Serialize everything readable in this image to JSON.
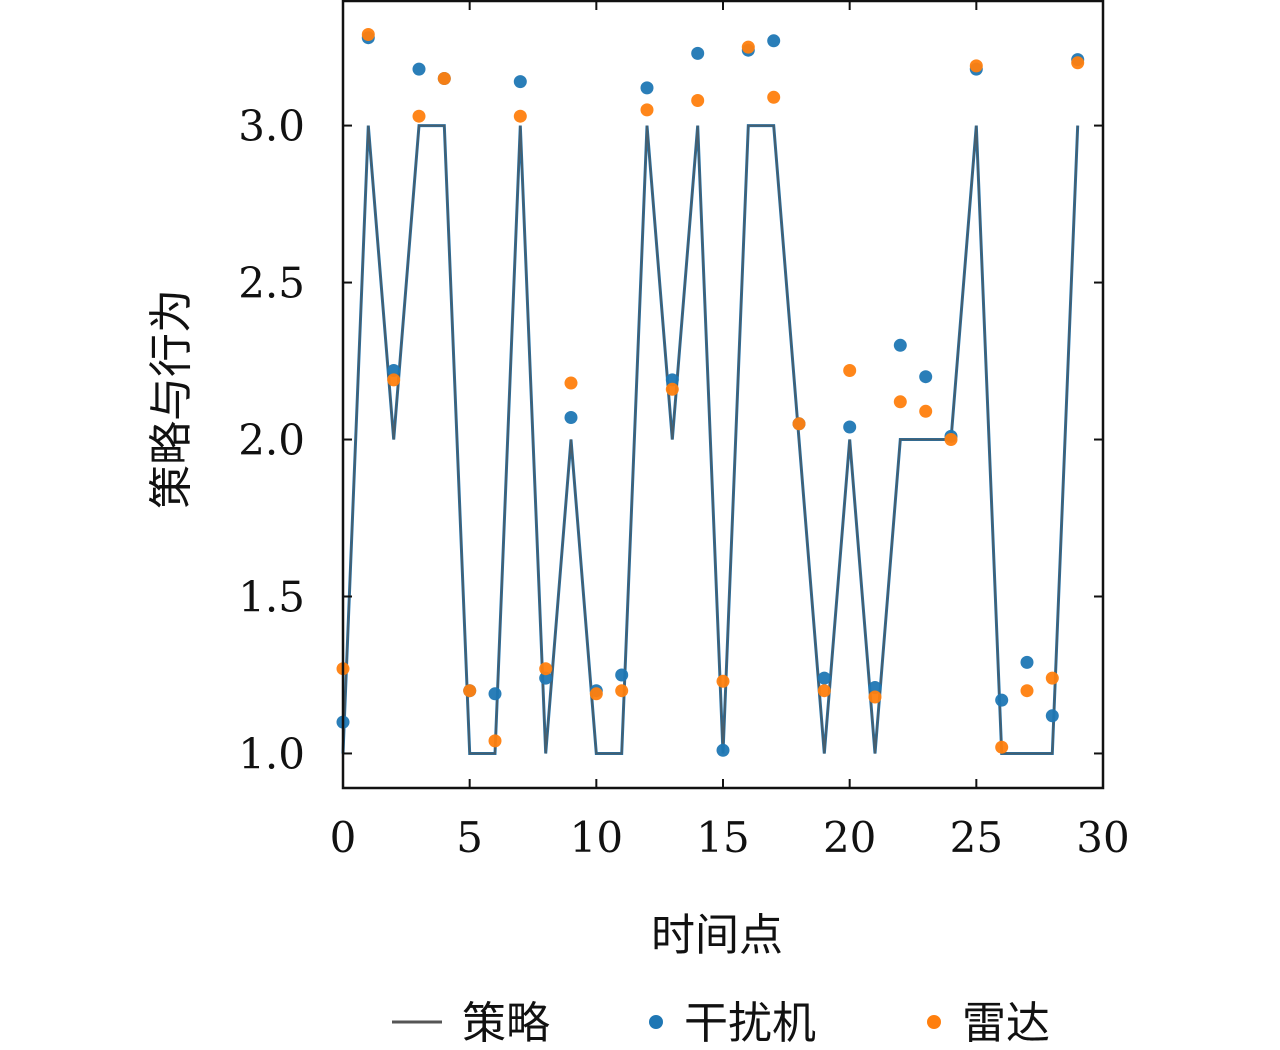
{
  "chart_data": {
    "type": "line",
    "title": "",
    "xlabel": "时间点",
    "ylabel": "策略与行为",
    "xlim": [
      0,
      30
    ],
    "ylim": [
      0.89,
      3.4
    ],
    "xticks": [
      0,
      5,
      10,
      15,
      20,
      25,
      30
    ],
    "xtick_labels": [
      "0",
      "5",
      "10",
      "15",
      "20",
      "25",
      "30"
    ],
    "yticks": [
      1.0,
      1.5,
      2.0,
      2.5,
      3.0
    ],
    "ytick_labels": [
      "1.0",
      "1.5",
      "2.0",
      "2.5",
      "3.0"
    ],
    "grid": false,
    "legend_position": "bottom",
    "x": [
      0,
      1,
      2,
      3,
      4,
      5,
      6,
      7,
      8,
      9,
      10,
      11,
      12,
      13,
      14,
      15,
      16,
      17,
      18,
      19,
      20,
      21,
      22,
      23,
      24,
      25,
      26,
      27,
      28,
      29
    ],
    "series": [
      {
        "name": "策略",
        "kind": "line",
        "color": "#1f77b4",
        "overlay_color": "#555555",
        "values": [
          1.0,
          3.0,
          2.0,
          3.0,
          3.0,
          1.0,
          1.0,
          3.0,
          1.0,
          2.0,
          1.0,
          1.0,
          3.0,
          2.0,
          3.0,
          1.0,
          3.0,
          3.0,
          2.0,
          1.0,
          2.0,
          1.0,
          2.0,
          2.0,
          2.0,
          3.0,
          1.0,
          1.0,
          1.0,
          3.0
        ]
      },
      {
        "name": "干扰机",
        "kind": "scatter",
        "color": "#1f77b4",
        "values": [
          1.1,
          3.28,
          2.22,
          3.18,
          3.15,
          1.2,
          1.19,
          3.14,
          1.24,
          2.07,
          1.2,
          1.25,
          3.12,
          2.19,
          3.23,
          1.01,
          3.24,
          3.27,
          2.05,
          1.24,
          2.04,
          1.21,
          2.3,
          2.2,
          2.01,
          3.18,
          1.17,
          1.29,
          1.12,
          3.21
        ]
      },
      {
        "name": "雷达",
        "kind": "scatter",
        "color": "#ff7f0e",
        "values": [
          1.27,
          3.29,
          2.19,
          3.03,
          3.15,
          1.2,
          1.04,
          3.03,
          1.27,
          2.18,
          1.19,
          1.2,
          3.05,
          2.16,
          3.08,
          1.23,
          3.25,
          3.09,
          2.05,
          1.2,
          2.22,
          1.18,
          2.12,
          2.09,
          2.0,
          3.19,
          1.02,
          1.2,
          1.24,
          3.2
        ]
      }
    ]
  }
}
